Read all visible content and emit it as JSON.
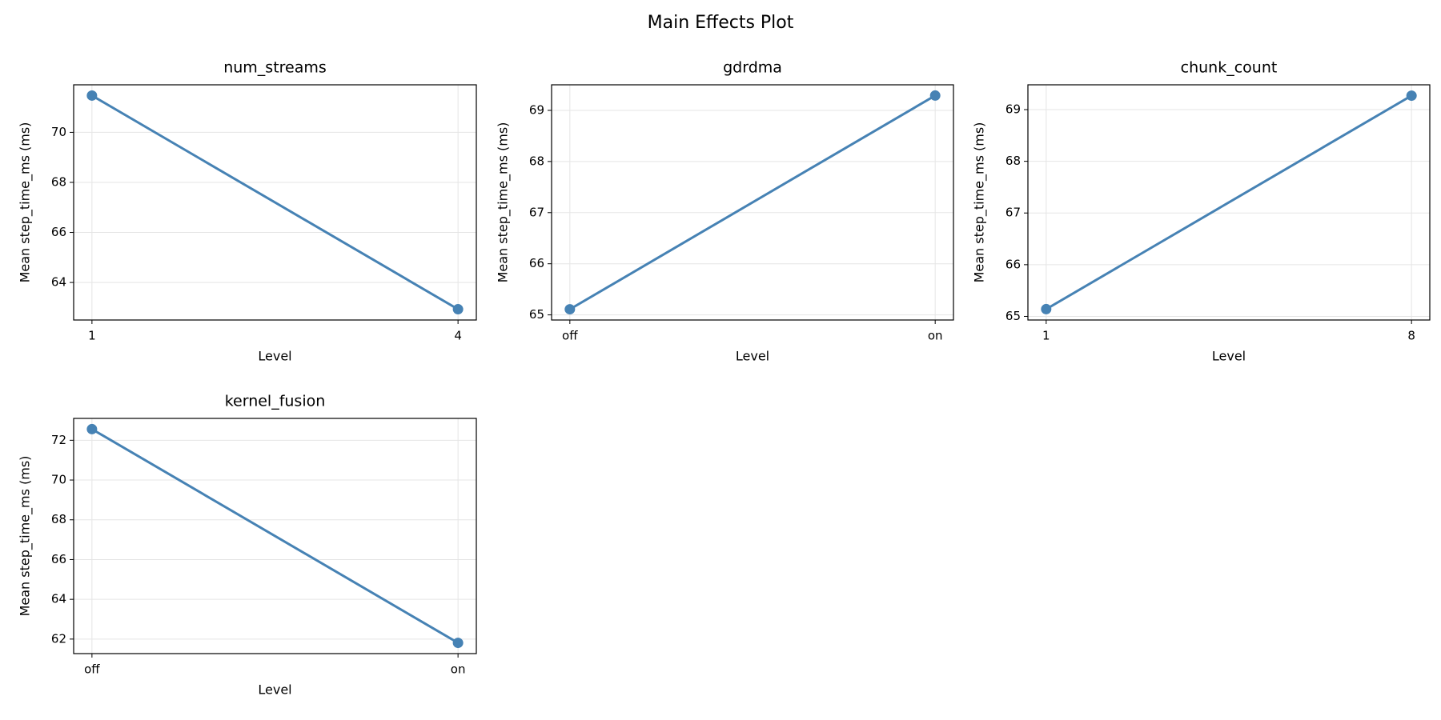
{
  "title": "Main Effects Plot",
  "chart_data": [
    {
      "type": "line",
      "title": "num_streams",
      "x_label": "Level",
      "y_label": "Mean step_time_ms (ms)",
      "categories": [
        "1",
        "4"
      ],
      "values": [
        71.47,
        62.93
      ],
      "color": "#4682b4",
      "ylim": [
        62.5,
        71.9
      ],
      "yticks": [
        64,
        66,
        68,
        70
      ],
      "grid": true
    },
    {
      "type": "line",
      "title": "gdrdma",
      "x_label": "Level",
      "y_label": "Mean step_time_ms (ms)",
      "categories": [
        "off",
        "on"
      ],
      "values": [
        65.11,
        69.29
      ],
      "color": "#4682b4",
      "ylim": [
        64.9,
        69.5
      ],
      "yticks": [
        65,
        66,
        67,
        68,
        69
      ],
      "grid": true
    },
    {
      "type": "line",
      "title": "chunk_count",
      "x_label": "Level",
      "y_label": "Mean step_time_ms (ms)",
      "categories": [
        "1",
        "8"
      ],
      "values": [
        65.14,
        69.27
      ],
      "color": "#4682b4",
      "ylim": [
        64.93,
        69.48
      ],
      "yticks": [
        65,
        66,
        67,
        68,
        69
      ],
      "grid": true
    },
    {
      "type": "line",
      "title": "kernel_fusion",
      "x_label": "Level",
      "y_label": "Mean step_time_ms (ms)",
      "categories": [
        "off",
        "on"
      ],
      "values": [
        72.56,
        61.81
      ],
      "color": "#4682b4",
      "ylim": [
        61.27,
        73.1
      ],
      "yticks": [
        62,
        64,
        66,
        68,
        70,
        72
      ],
      "grid": true
    }
  ]
}
